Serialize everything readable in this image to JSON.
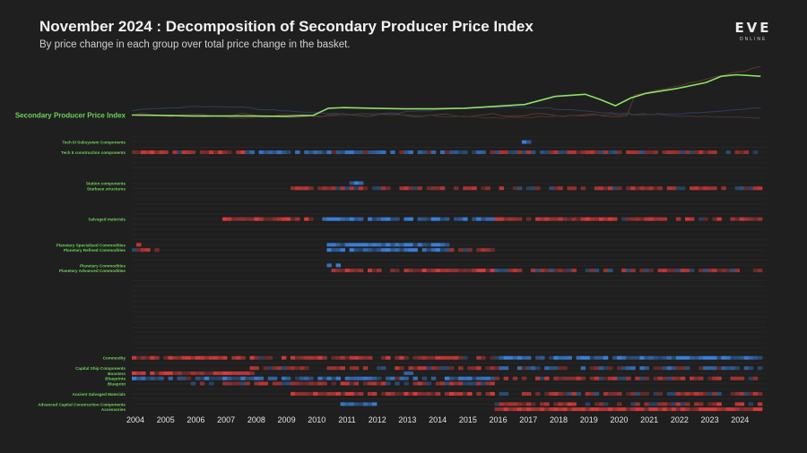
{
  "title": "November 2024 : Decomposition of Secondary Producer Price Index",
  "subtitle": "By price change in each group over total price change in the basket.",
  "logo": {
    "main": "EVE",
    "sub": "ONLINE"
  },
  "colors": {
    "background": "#1f1f1f",
    "index_line": "#8ee06a",
    "label_bright": "#6fd15a",
    "label_dim": "#3c4a38",
    "increase": "#d83a3a",
    "decrease": "#3a7fd8"
  },
  "chart_data": {
    "type": "heatmap",
    "title": "November 2024 : Decomposition of Secondary Producer Price Index",
    "x": {
      "start_year": 2004,
      "end_year": 2024,
      "tick_labels": [
        "2004",
        "2005",
        "2006",
        "2007",
        "2008",
        "2009",
        "2010",
        "2011",
        "2012",
        "2013",
        "2014",
        "2015",
        "2016",
        "2017",
        "2018",
        "2019",
        "2020",
        "2021",
        "2022",
        "2023",
        "2024"
      ]
    },
    "index_series": {
      "name": "Secondary Producer Price Index",
      "points": [
        [
          2004.0,
          1.0
        ],
        [
          2005.0,
          0.99
        ],
        [
          2006.0,
          0.97
        ],
        [
          2007.0,
          0.97
        ],
        [
          2008.0,
          0.97
        ],
        [
          2009.0,
          0.96
        ],
        [
          2010.0,
          0.99
        ],
        [
          2010.5,
          1.22
        ],
        [
          2011.0,
          1.24
        ],
        [
          2012.0,
          1.22
        ],
        [
          2013.0,
          1.2
        ],
        [
          2014.0,
          1.2
        ],
        [
          2015.0,
          1.22
        ],
        [
          2016.0,
          1.28
        ],
        [
          2017.0,
          1.34
        ],
        [
          2018.0,
          1.6
        ],
        [
          2019.0,
          1.67
        ],
        [
          2019.5,
          1.5
        ],
        [
          2020.0,
          1.3
        ],
        [
          2020.5,
          1.55
        ],
        [
          2021.0,
          1.7
        ],
        [
          2022.0,
          1.85
        ],
        [
          2023.0,
          2.05
        ],
        [
          2023.5,
          2.25
        ],
        [
          2024.0,
          2.3
        ],
        [
          2024.8,
          2.25
        ]
      ]
    },
    "rows": [
      {
        "label": "",
        "bright": false
      },
      {
        "label": "Tech III Subsystem Components",
        "bright": true,
        "segments": [
          [
            2017.0,
            2017.1,
            -0.7
          ]
        ]
      },
      {
        "label": "",
        "bright": false
      },
      {
        "label": "Tech II construction components",
        "bright": true,
        "segments": [
          [
            2004.0,
            2007.8,
            0.45
          ],
          [
            2007.8,
            2011.5,
            -0.35
          ],
          [
            2011.5,
            2016.0,
            -0.25
          ],
          [
            2016.0,
            2024.8,
            0.2
          ]
        ]
      },
      {
        "label": "",
        "bright": false
      },
      {
        "label": "",
        "bright": false
      },
      {
        "label": "",
        "bright": false
      },
      {
        "label": "",
        "bright": false
      },
      {
        "label": "",
        "bright": false
      },
      {
        "label": "Station components",
        "bright": true,
        "segments": [
          [
            2011.2,
            2011.6,
            -0.5
          ]
        ]
      },
      {
        "label": "Starbase structures",
        "bright": true,
        "segments": [
          [
            2009.3,
            2016.0,
            0.35
          ],
          [
            2016.0,
            2024.8,
            0.25
          ]
        ]
      },
      {
        "label": "",
        "bright": false
      },
      {
        "label": "",
        "bright": false
      },
      {
        "label": "",
        "bright": false
      },
      {
        "label": "",
        "bright": false
      },
      {
        "label": "",
        "bright": false
      },
      {
        "label": "Salvaged materials",
        "bright": true,
        "segments": [
          [
            2007.0,
            2010.0,
            0.6
          ],
          [
            2010.0,
            2016.0,
            -0.5
          ],
          [
            2016.0,
            2024.8,
            0.45
          ]
        ]
      },
      {
        "label": "",
        "bright": false
      },
      {
        "label": "",
        "bright": false
      },
      {
        "label": "",
        "bright": false
      },
      {
        "label": "",
        "bright": false
      },
      {
        "label": "Planetary Specialized Commodities",
        "bright": true,
        "segments": [
          [
            2004.0,
            2004.2,
            0.6
          ],
          [
            2010.5,
            2014.5,
            -0.75
          ]
        ]
      },
      {
        "label": "Planetary Refined Commodities",
        "bright": true,
        "segments": [
          [
            2004.0,
            2005.0,
            0.3
          ],
          [
            2010.5,
            2014.5,
            -0.6
          ],
          [
            2014.5,
            2016.0,
            0.3
          ]
        ]
      },
      {
        "label": "",
        "bright": false
      },
      {
        "label": "",
        "bright": false
      },
      {
        "label": "Planetary Commodities",
        "bright": true,
        "segments": [
          [
            2010.5,
            2010.8,
            -0.4
          ]
        ]
      },
      {
        "label": "Planetary Advanced Commodities",
        "bright": true,
        "segments": [
          [
            2010.5,
            2016.0,
            0.45
          ],
          [
            2016.0,
            2024.8,
            0.2
          ]
        ]
      },
      {
        "label": "",
        "bright": false
      },
      {
        "label": "",
        "bright": false
      },
      {
        "label": "",
        "bright": false
      },
      {
        "label": "",
        "bright": false
      },
      {
        "label": "",
        "bright": false
      },
      {
        "label": "",
        "bright": false
      },
      {
        "label": "",
        "bright": false
      },
      {
        "label": "",
        "bright": false
      },
      {
        "label": "",
        "bright": false
      },
      {
        "label": "",
        "bright": false
      },
      {
        "label": "",
        "bright": false
      },
      {
        "label": "",
        "bright": false
      },
      {
        "label": "",
        "bright": false
      },
      {
        "label": "",
        "bright": false
      },
      {
        "label": "",
        "bright": false
      },
      {
        "label": "",
        "bright": false
      },
      {
        "label": "Commodity",
        "bright": true,
        "segments": [
          [
            2004.0,
            2016.0,
            0.45
          ],
          [
            2016.0,
            2024.8,
            -0.6
          ]
        ]
      },
      {
        "label": "",
        "bright": false
      },
      {
        "label": "Capital Ship Components",
        "bright": true,
        "segments": [
          [
            2008.0,
            2016.0,
            0.25
          ],
          [
            2016.0,
            2024.8,
            -0.25
          ]
        ]
      },
      {
        "label": "Boosters",
        "bright": true,
        "segments": [
          [
            2004.0,
            2008.0,
            0.55
          ],
          [
            2013.0,
            2013.2,
            -0.8
          ]
        ]
      },
      {
        "label": "Blueprints",
        "bright": true,
        "segments": [
          [
            2004.0,
            2016.0,
            -0.4
          ],
          [
            2016.0,
            2024.8,
            0.3
          ]
        ]
      },
      {
        "label": "Blueprint",
        "bright": true,
        "segments": [
          [
            2006.0,
            2016.0,
            0.3
          ]
        ]
      },
      {
        "label": "",
        "bright": false
      },
      {
        "label": "Ancient Salvaged Materials",
        "bright": true,
        "segments": [
          [
            2009.2,
            2016.0,
            0.55
          ],
          [
            2016.0,
            2024.8,
            0.25
          ]
        ]
      },
      {
        "label": "",
        "bright": false
      },
      {
        "label": "Advanced Capital Construction Components",
        "bright": true,
        "segments": [
          [
            2011.0,
            2012.0,
            -0.5
          ],
          [
            2016.0,
            2024.8,
            0.4
          ]
        ]
      },
      {
        "label": "Accessories",
        "bright": true,
        "segments": [
          [
            2016.0,
            2024.8,
            0.85
          ]
        ]
      }
    ],
    "legend": "none",
    "grid": true
  }
}
